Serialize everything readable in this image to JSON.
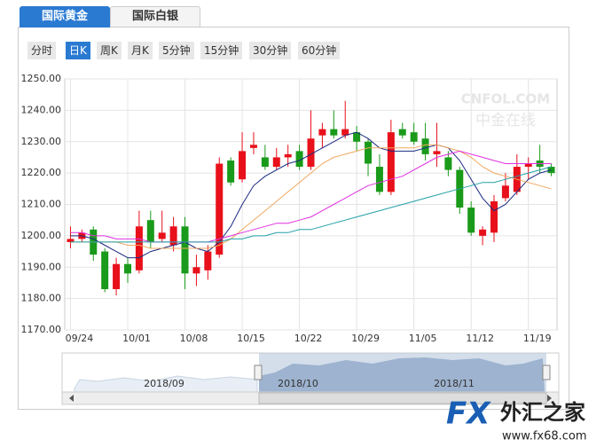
{
  "tabs": [
    "国际黄金",
    "国际白银"
  ],
  "periods": [
    "分时",
    "日K",
    "周K",
    "月K",
    "5分钟",
    "15分钟",
    "30分钟",
    "60分钟"
  ],
  "watermark": {
    "brand": "CNFOL.COM",
    "name": "中金在线"
  },
  "logo": {
    "mark": "FX",
    "name": "外汇之家",
    "url": "www.fx68.com"
  },
  "chart_data": {
    "type": "candlestick",
    "categories": [
      "09/24",
      null,
      null,
      null,
      null,
      "10/01",
      null,
      null,
      null,
      null,
      "10/08",
      null,
      null,
      null,
      null,
      "10/15",
      null,
      null,
      null,
      null,
      "10/22",
      null,
      null,
      null,
      null,
      "10/29",
      null,
      null,
      null,
      null,
      "11/05",
      null,
      null,
      null,
      null,
      "11/12",
      null,
      null,
      null,
      null,
      "11/19",
      null,
      null
    ],
    "open": [
      1198,
      1199,
      1202,
      1195,
      1183,
      1191,
      1189,
      1205,
      1199,
      1197,
      1203,
      1188,
      1189,
      1194,
      1224,
      1218,
      1228,
      1225,
      1222,
      1225,
      1227,
      1222,
      1232,
      1234,
      1232,
      1233,
      1230,
      1222,
      1214,
      1234,
      1233,
      1231,
      1226,
      1225,
      1221,
      1209,
      1200,
      1201,
      1212,
      1214,
      1222,
      1224,
      1222
    ],
    "high": [
      1203,
      1202,
      1203,
      1196,
      1193,
      1193,
      1208,
      1208,
      1208,
      1206,
      1206,
      1194,
      1197,
      1225,
      1225,
      1233,
      1233,
      1229,
      1228,
      1229,
      1229,
      1240,
      1236,
      1240,
      1243,
      1235,
      1231,
      1226,
      1237,
      1236,
      1236,
      1236,
      1236,
      1227,
      1222,
      1211,
      1203,
      1213,
      1220,
      1226,
      1225,
      1229,
      1223
    ],
    "low": [
      1196,
      1198,
      1192,
      1182,
      1181,
      1185,
      1188,
      1196,
      1198,
      1195,
      1183,
      1184,
      1186,
      1193,
      1216,
      1217,
      1226,
      1221,
      1221,
      1222,
      1221,
      1221,
      1228,
      1231,
      1231,
      1227,
      1219,
      1213,
      1213,
      1231,
      1229,
      1224,
      1222,
      1219,
      1207,
      1200,
      1197,
      1198,
      1211,
      1213,
      1218,
      1220,
      1219
    ],
    "close": [
      1199,
      1201,
      1194,
      1183,
      1191,
      1188,
      1203,
      1198,
      1201,
      1203,
      1188,
      1190,
      1195,
      1223,
      1217,
      1227,
      1229,
      1222,
      1225,
      1226,
      1222,
      1231,
      1234,
      1232,
      1234,
      1230,
      1223,
      1214,
      1233,
      1232,
      1230,
      1226,
      1227,
      1221,
      1209,
      1201,
      1202,
      1211,
      1216,
      1222,
      1223,
      1222,
      1220
    ],
    "up_color": "#e8101a",
    "down_color": "#1a9a1a",
    "lines": [
      {
        "color": "#1a2a80",
        "values": [
          1200,
          1200,
          1199,
          1197,
          1195,
          1193,
          1193,
          1195,
          1196,
          1197,
          1198,
          1196,
          1195,
          1198,
          1203,
          1210,
          1216,
          1219,
          1221,
          1223,
          1224,
          1226,
          1228,
          1230,
          1232,
          1233,
          1231,
          1228,
          1227,
          1227,
          1227,
          1228,
          1229,
          1228,
          1224,
          1218,
          1212,
          1208,
          1210,
          1214,
          1218,
          1220,
          1221
        ]
      },
      {
        "color": "#f0a860",
        "values": [
          1198,
          1198,
          1198,
          1198,
          1198,
          1197,
          1197,
          1196,
          1196,
          1196,
          1196,
          1196,
          1196,
          1197,
          1199,
          1202,
          1205,
          1208,
          1211,
          1214,
          1217,
          1220,
          1223,
          1225,
          1226,
          1227,
          1228,
          1228,
          1228,
          1228,
          1228,
          1229,
          1229,
          1228,
          1227,
          1225,
          1222,
          1220,
          1219,
          1218,
          1217,
          1216,
          1215
        ]
      },
      {
        "color": "#e030e0",
        "values": [
          1201,
          1201,
          1200,
          1200,
          1199,
          1199,
          1199,
          1198,
          1198,
          1198,
          1198,
          1198,
          1198,
          1199,
          1200,
          1201,
          1202,
          1203,
          1204,
          1204,
          1205,
          1206,
          1208,
          1210,
          1212,
          1214,
          1216,
          1217,
          1218,
          1219,
          1221,
          1223,
          1225,
          1226,
          1227,
          1226,
          1225,
          1224,
          1223,
          1223,
          1223,
          1223,
          1223
        ]
      },
      {
        "color": "#20a0a8",
        "values": [
          1198,
          1198,
          1198,
          1198,
          1198,
          1198,
          1198,
          1198,
          1198,
          1198,
          1198,
          1198,
          1198,
          1198,
          1199,
          1199,
          1200,
          1200,
          1201,
          1201,
          1202,
          1202,
          1203,
          1204,
          1205,
          1206,
          1207,
          1208,
          1209,
          1210,
          1211,
          1212,
          1213,
          1214,
          1215,
          1216,
          1217,
          1217,
          1218,
          1219,
          1220,
          1221,
          1222
        ]
      }
    ],
    "ylim": [
      1170,
      1250
    ],
    "yticks": [
      {
        "value": 1170,
        "label": "1170.00"
      },
      {
        "value": 1180,
        "label": "1180.00"
      },
      {
        "value": 1190,
        "label": "1190.00"
      },
      {
        "value": 1200,
        "label": "1200.00"
      },
      {
        "value": 1210,
        "label": "1210.00"
      },
      {
        "value": 1220,
        "label": "1220.00"
      },
      {
        "value": 1230,
        "label": "1230.00"
      },
      {
        "value": 1240,
        "label": "1240.00"
      },
      {
        "value": 1250,
        "label": "1250.00"
      }
    ],
    "grid": true,
    "navigator": {
      "labels": [
        "2018/09",
        "2018/10",
        "2018/11"
      ]
    }
  }
}
